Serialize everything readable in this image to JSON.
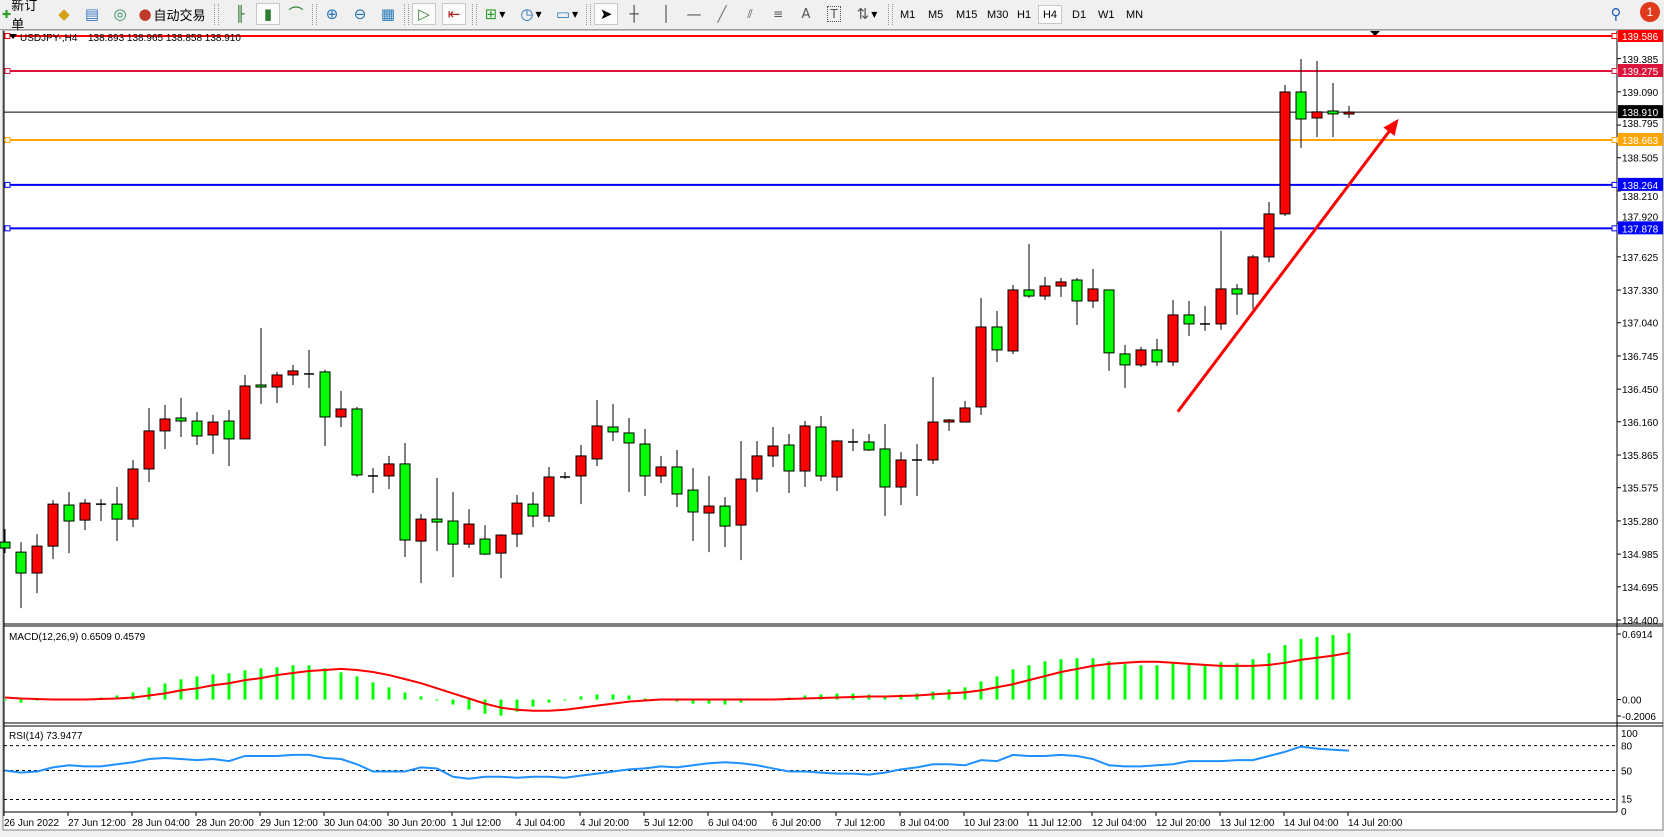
{
  "toolbar": {
    "new_order": "新订单",
    "auto_trading": "自动交易",
    "text_tool": "A",
    "label_tool": "T",
    "timeframes": [
      "M1",
      "M5",
      "M15",
      "M30",
      "H1",
      "H4",
      "D1",
      "W1",
      "MN"
    ],
    "active_timeframe": "H4",
    "notification_count": "1",
    "icons": [
      "new-order-icon",
      "history-center-icon",
      "navigator-icon",
      "signals-icon",
      "auto-trading-icon",
      "bar-chart-icon",
      "candlestick-icon",
      "line-chart-icon",
      "zoom-in-icon",
      "zoom-out-icon",
      "tile-windows-icon",
      "autoscroll-icon",
      "chart-shift-icon",
      "new-chart-icon",
      "periods-icon",
      "templates-icon",
      "cursor-icon",
      "crosshair-icon",
      "vertical-line-icon",
      "horizontal-line-icon",
      "trendline-icon",
      "equidistant-channel-icon",
      "fibonacci-icon",
      "search-icon",
      "notification-icon"
    ]
  },
  "chart": {
    "symbol": "USDJPY-,H4",
    "ohlc_text": "138.893 138.965 138.858 138.910",
    "macd_label": "MACD(12,26,9) 0.6509 0.4579",
    "rsi_label": "RSI(14) 73.9477"
  },
  "chart_data": {
    "type": "candlestick",
    "bull_color": "#ff0000",
    "bear_color": "#00ff00",
    "ylim": [
      134.4,
      139.586
    ],
    "ohlc": [
      [
        135.092,
        135.207,
        134.994,
        135.039
      ],
      [
        135.003,
        135.092,
        134.506,
        134.817
      ],
      [
        134.817,
        135.163,
        134.639,
        135.056
      ],
      [
        135.056,
        135.465,
        134.941,
        135.429
      ],
      [
        135.421,
        135.537,
        134.994,
        135.279
      ],
      [
        135.287,
        135.474,
        135.199,
        135.438
      ],
      [
        135.429,
        135.474,
        135.279,
        135.429
      ],
      [
        135.429,
        135.581,
        135.101,
        135.296
      ],
      [
        135.296,
        135.821,
        135.225,
        135.741
      ],
      [
        135.741,
        136.283,
        135.626,
        136.079
      ],
      [
        136.079,
        136.31,
        135.919,
        136.185
      ],
      [
        136.194,
        136.372,
        136.025,
        136.167
      ],
      [
        136.167,
        136.247,
        135.954,
        136.034
      ],
      [
        136.043,
        136.221,
        135.874,
        136.158
      ],
      [
        136.167,
        136.265,
        135.768,
        136.008
      ],
      [
        136.008,
        136.576,
        136.008,
        136.478
      ],
      [
        136.487,
        136.993,
        136.318,
        136.469
      ],
      [
        136.469,
        136.603,
        136.327,
        136.576
      ],
      [
        136.576,
        136.665,
        136.487,
        136.612
      ],
      [
        136.585,
        136.798,
        136.461,
        136.585
      ],
      [
        136.603,
        136.621,
        135.945,
        136.203
      ],
      [
        136.203,
        136.434,
        136.114,
        136.274
      ],
      [
        136.274,
        136.292,
        135.67,
        135.688
      ],
      [
        135.679,
        135.75,
        135.528,
        135.679
      ],
      [
        135.679,
        135.857,
        135.563,
        135.786
      ],
      [
        135.786,
        135.972,
        134.959,
        135.11
      ],
      [
        135.101,
        135.341,
        134.728,
        135.296
      ],
      [
        135.296,
        135.661,
        135.012,
        135.27
      ],
      [
        135.279,
        135.537,
        134.781,
        135.074
      ],
      [
        135.074,
        135.385,
        135.039,
        135.252
      ],
      [
        135.119,
        135.243,
        134.977,
        134.985
      ],
      [
        134.994,
        135.163,
        134.772,
        135.154
      ],
      [
        135.163,
        135.51,
        135.048,
        135.438
      ],
      [
        135.429,
        135.537,
        135.225,
        135.323
      ],
      [
        135.323,
        135.759,
        135.27,
        135.67
      ],
      [
        135.67,
        135.714,
        135.652,
        135.67
      ],
      [
        135.679,
        135.954,
        135.429,
        135.857
      ],
      [
        135.83,
        136.354,
        135.768,
        136.123
      ],
      [
        136.114,
        136.318,
        135.99,
        136.07
      ],
      [
        136.061,
        136.194,
        135.537,
        135.972
      ],
      [
        135.963,
        136.096,
        135.501,
        135.679
      ],
      [
        135.679,
        135.857,
        135.616,
        135.759
      ],
      [
        135.759,
        135.91,
        135.403,
        135.519
      ],
      [
        135.554,
        135.75,
        135.101,
        135.359
      ],
      [
        135.35,
        135.679,
        135.003,
        135.412
      ],
      [
        135.412,
        135.492,
        135.048,
        135.234
      ],
      [
        135.243,
        135.99,
        134.932,
        135.652
      ],
      [
        135.652,
        135.99,
        135.537,
        135.857
      ],
      [
        135.857,
        136.114,
        135.759,
        135.945
      ],
      [
        135.954,
        136.052,
        135.528,
        135.723
      ],
      [
        135.723,
        136.167,
        135.581,
        136.123
      ],
      [
        136.114,
        136.212,
        135.634,
        135.679
      ],
      [
        135.67,
        135.999,
        135.545,
        135.99
      ],
      [
        135.981,
        136.096,
        135.901,
        135.981
      ],
      [
        135.981,
        136.052,
        135.901,
        135.91
      ],
      [
        135.919,
        136.141,
        135.323,
        135.581
      ],
      [
        135.581,
        135.892,
        135.421,
        135.821
      ],
      [
        135.821,
        135.963,
        135.501,
        135.821
      ],
      [
        135.821,
        136.558,
        135.786,
        136.158
      ],
      [
        136.158,
        136.185,
        136.079,
        136.176
      ],
      [
        136.158,
        136.345,
        136.158,
        136.283
      ],
      [
        136.292,
        137.26,
        136.221,
        137.002
      ],
      [
        137.002,
        137.144,
        136.691,
        136.798
      ],
      [
        136.789,
        137.375,
        136.762,
        137.331
      ],
      [
        137.331,
        137.739,
        137.26,
        137.277
      ],
      [
        137.277,
        137.446,
        137.242,
        137.366
      ],
      [
        137.366,
        137.437,
        137.269,
        137.402
      ],
      [
        137.419,
        137.437,
        137.02,
        137.233
      ],
      [
        137.233,
        137.517,
        137.171,
        137.34
      ],
      [
        137.331,
        137.331,
        136.612,
        136.772
      ],
      [
        136.763,
        136.843,
        136.461,
        136.665
      ],
      [
        136.665,
        136.825,
        136.647,
        136.798
      ],
      [
        136.798,
        136.896,
        136.656,
        136.692
      ],
      [
        136.692,
        137.242,
        136.656,
        137.109
      ],
      [
        137.109,
        137.233,
        136.922,
        137.029
      ],
      [
        137.029,
        137.189,
        136.967,
        137.029
      ],
      [
        137.029,
        137.855,
        136.976,
        137.34
      ],
      [
        137.34,
        137.384,
        137.109,
        137.295
      ],
      [
        137.295,
        137.642,
        137.162,
        137.624
      ],
      [
        137.624,
        138.112,
        137.579,
        138.006
      ],
      [
        138.006,
        139.151,
        137.988,
        139.089
      ],
      [
        139.089,
        139.382,
        138.592,
        138.849
      ],
      [
        138.858,
        139.364,
        138.689,
        138.912
      ],
      [
        138.92,
        139.169,
        138.689,
        138.894
      ],
      [
        138.893,
        138.965,
        138.858,
        138.91
      ]
    ],
    "price_axis": {
      "ticks": [
        "139.385",
        "139.090",
        "138.795",
        "138.505",
        "138.210",
        "137.920",
        "137.625",
        "137.330",
        "137.040",
        "136.745",
        "136.450",
        "136.160",
        "135.865",
        "135.575",
        "135.280",
        "134.985",
        "134.695",
        "134.400"
      ]
    },
    "x_tick_labels": [
      "26 Jun 2022",
      "27 Jun 12:00",
      "28 Jun 04:00",
      "28 Jun 20:00",
      "29 Jun 12:00",
      "30 Jun 04:00",
      "30 Jun 20:00",
      "1 Jul 12:00",
      "4 Jul 04:00",
      "4 Jul 20:00",
      "5 Jul 12:00",
      "6 Jul 04:00",
      "6 Jul 20:00",
      "7 Jul 12:00",
      "8 Jul 04:00",
      "10 Jul 23:00",
      "11 Jul 12:00",
      "12 Jul 04:00",
      "12 Jul 20:00",
      "13 Jul 12:00",
      "14 Jul 04:00",
      "14 Jul 20:00"
    ],
    "levels": [
      {
        "price": "139.586",
        "color": "#ff0000"
      },
      {
        "price": "139.275",
        "color": "#dc143c"
      },
      {
        "price": "138.663",
        "color": "#ffa500"
      },
      {
        "price": "138.264",
        "color": "#0000ff"
      },
      {
        "price": "137.878",
        "color": "#0000ff"
      }
    ],
    "bid_line": {
      "price": "138.910",
      "color": "#000000"
    },
    "trend_arrow": {
      "color": "#ff0000",
      "from": {
        "bar": 73.3,
        "price": 136.25
      },
      "to": {
        "bar": 87.1,
        "price": 138.85
      }
    },
    "macd": {
      "ylim": [
        -0.2006,
        0.6914
      ],
      "axis_labels": [
        "0.6914",
        "0.00",
        "-0.2006"
      ],
      "histogram_color": "#00ff00",
      "signal_color": "#ff0000",
      "histogram": [
        0,
        -0.03,
        -0.01,
        0,
        0.01,
        0.01,
        0.02,
        0.04,
        0.069,
        0.119,
        0.158,
        0.198,
        0.227,
        0.247,
        0.257,
        0.287,
        0.306,
        0.316,
        0.336,
        0.336,
        0.306,
        0.267,
        0.227,
        0.168,
        0.119,
        0.069,
        0.03,
        -0.01,
        -0.049,
        -0.099,
        -0.138,
        -0.158,
        -0.119,
        -0.069,
        -0.03,
        0,
        0.03,
        0.049,
        0.049,
        0.04,
        0.01,
        0,
        -0.02,
        -0.04,
        -0.04,
        -0.049,
        -0.03,
        -0.01,
        0.01,
        0.02,
        0.04,
        0.049,
        0.059,
        0.059,
        0.049,
        0.04,
        0.049,
        0.059,
        0.079,
        0.099,
        0.119,
        0.178,
        0.227,
        0.296,
        0.336,
        0.375,
        0.395,
        0.405,
        0.405,
        0.375,
        0.346,
        0.336,
        0.336,
        0.356,
        0.356,
        0.346,
        0.366,
        0.356,
        0.395,
        0.455,
        0.534,
        0.593,
        0.613,
        0.632,
        0.6509
      ],
      "signal": [
        0.02,
        0.01,
        0.005,
        0,
        0,
        0,
        0.005,
        0.01,
        0.02,
        0.04,
        0.06,
        0.09,
        0.11,
        0.14,
        0.16,
        0.19,
        0.21,
        0.24,
        0.26,
        0.28,
        0.29,
        0.3,
        0.29,
        0.27,
        0.24,
        0.2,
        0.16,
        0.11,
        0.06,
        0.01,
        -0.04,
        -0.08,
        -0.1,
        -0.11,
        -0.11,
        -0.1,
        -0.08,
        -0.06,
        -0.04,
        -0.02,
        -0.01,
        0,
        0,
        0,
        0,
        0,
        0,
        0,
        0,
        0.005,
        0.01,
        0.015,
        0.02,
        0.025,
        0.03,
        0.03,
        0.035,
        0.04,
        0.05,
        0.06,
        0.07,
        0.09,
        0.12,
        0.15,
        0.19,
        0.23,
        0.27,
        0.3,
        0.33,
        0.35,
        0.36,
        0.37,
        0.37,
        0.36,
        0.35,
        0.34,
        0.33,
        0.33,
        0.33,
        0.34,
        0.36,
        0.39,
        0.41,
        0.43,
        0.4579
      ]
    },
    "rsi": {
      "ylim": [
        0,
        100
      ],
      "axis_labels": [
        "100",
        "80",
        "50",
        "15",
        "0"
      ],
      "levels": [
        80,
        50,
        15
      ],
      "color": "#1e90ff",
      "values": [
        50,
        47.5,
        48.8,
        53.8,
        56.3,
        55,
        55,
        57.5,
        60,
        63.8,
        65,
        63.8,
        62.5,
        63.8,
        61.3,
        67.5,
        67.5,
        67.5,
        68.8,
        68.8,
        65,
        63.8,
        57.5,
        48.8,
        48.8,
        48.8,
        53.8,
        52.5,
        42.5,
        40,
        42.5,
        42.5,
        41.3,
        42.5,
        42.5,
        41.3,
        43.8,
        46.3,
        48.8,
        51.3,
        52.5,
        55,
        53.8,
        56.3,
        58.8,
        60,
        58.8,
        56.3,
        52.5,
        48.8,
        48.8,
        47.5,
        46.3,
        46.3,
        45,
        47.5,
        51.3,
        53.8,
        57.5,
        57.5,
        56.3,
        62.5,
        61.3,
        68.8,
        67.5,
        67.5,
        68.8,
        67.5,
        63.8,
        56.3,
        55,
        55,
        56.3,
        57.5,
        61.3,
        61.3,
        61.3,
        62.5,
        62.5,
        67.5,
        72.5,
        78.8,
        76.3,
        75,
        73.9
      ]
    }
  }
}
